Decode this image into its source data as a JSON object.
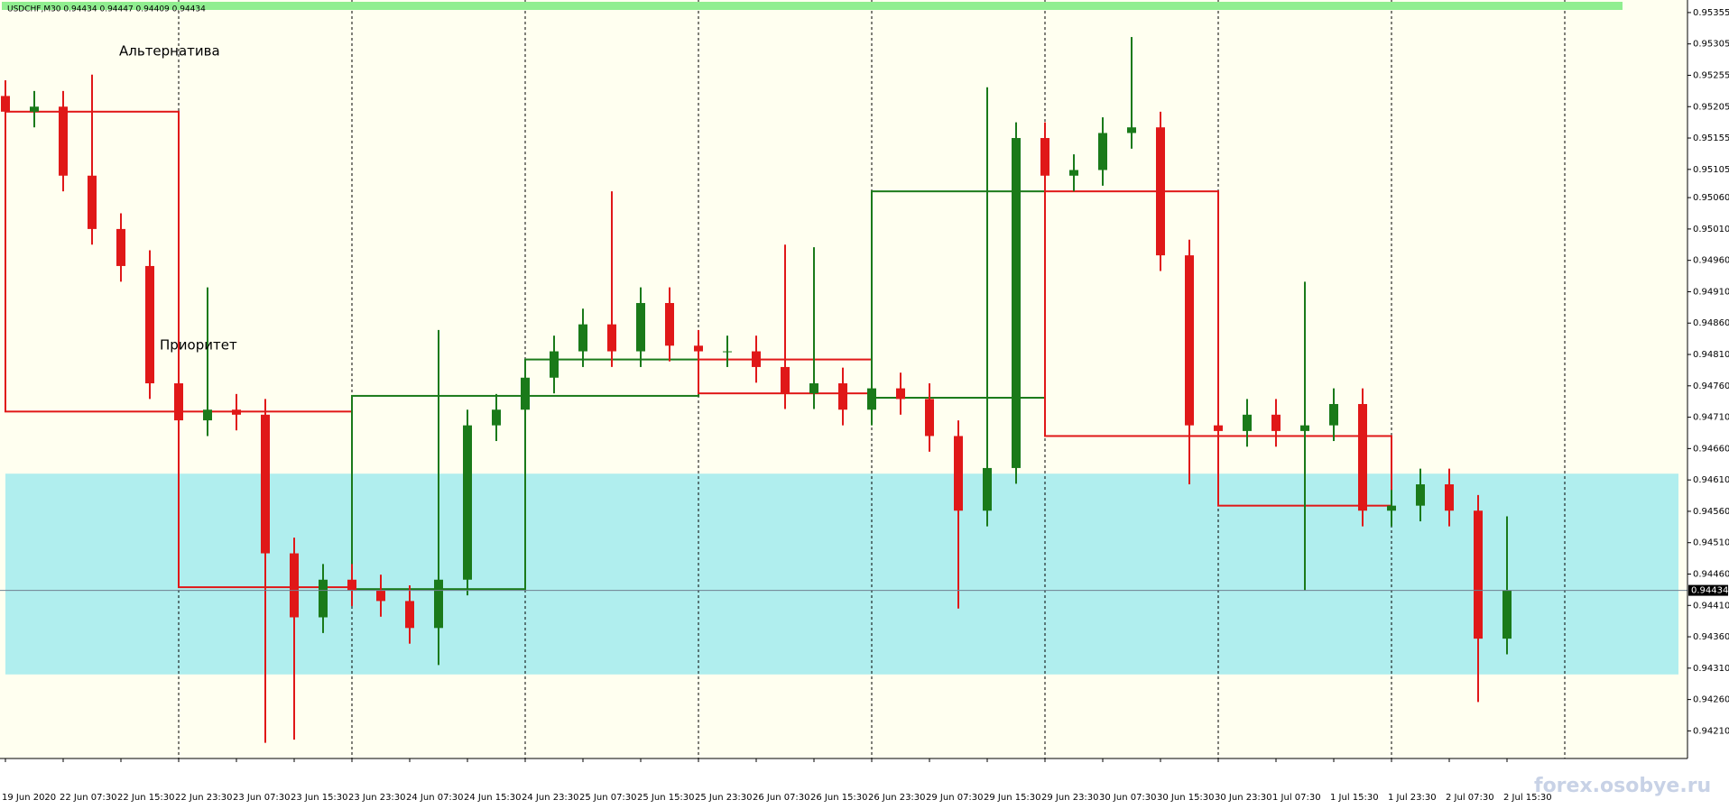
{
  "chart_data": {
    "type": "candlestick",
    "header": "USDCHF,M30  0.94434 0.94447 0.94409 0.94434",
    "annotations": [
      "Альтернатива",
      "Приоритет"
    ],
    "watermark": "forex.osobye.ru",
    "categories": [
      "19 Jun 2020",
      null,
      "22 Jun 07:30",
      null,
      "22 Jun 15:30",
      null,
      "22 Jun 23:30",
      null,
      "23 Jun 07:30",
      null,
      "23 Jun 15:30",
      null,
      "23 Jun 23:30",
      null,
      "24 Jun 07:30",
      null,
      "24 Jun 15:30",
      null,
      "24 Jun 23:30",
      null,
      "25 Jun 07:30",
      null,
      "25 Jun 15:30",
      null,
      "25 Jun 23:30",
      null,
      "26 Jun 07:30",
      null,
      "26 Jun 15:30",
      null,
      "26 Jun 23:30",
      null,
      "29 Jun 07:30",
      null,
      "29 Jun 15:30",
      null,
      "29 Jun 23:30",
      null,
      "30 Jun 07:30",
      null,
      "30 Jun 15:30",
      null,
      "30 Jun 23:30",
      null,
      "1 Jul 07:30",
      null,
      "1 Jul 15:30",
      null,
      "1 Jul 23:30",
      null,
      "2 Jul 07:30",
      null,
      "2 Jul 15:30"
    ],
    "open": [
      0.95222,
      0.95197,
      0.95205,
      0.95095,
      0.9501,
      0.94951,
      0.94764,
      0.94705,
      0.94722,
      0.94714,
      0.94493,
      0.94391,
      0.94451,
      0.94434,
      0.94417,
      0.94374,
      0.94451,
      0.94697,
      0.94722,
      0.94773,
      0.94815,
      0.94858,
      0.94815,
      0.94892,
      0.94824,
      0.94815,
      0.94815,
      0.9479,
      0.94748,
      0.94764,
      0.94722,
      0.94756,
      0.94739,
      0.9468,
      0.94561,
      0.94629,
      0.95155,
      0.95095,
      0.95104,
      0.95163,
      0.95172,
      0.94968,
      0.94697,
      0.94688,
      0.94714,
      0.94688,
      0.94697,
      0.94731,
      0.94561,
      0.94569,
      0.94603,
      0.94561,
      0.94357
    ],
    "high": [
      0.95247,
      0.9523,
      0.9523,
      0.95256,
      0.95035,
      0.94976,
      0.94789,
      0.94917,
      0.94747,
      0.94739,
      0.94518,
      0.94476,
      0.94476,
      0.94459,
      0.94442,
      0.94849,
      0.94722,
      0.94747,
      0.94798,
      0.9484,
      0.94883,
      0.9507,
      0.94917,
      0.94917,
      0.94849,
      0.9484,
      0.9484,
      0.94985,
      0.94981,
      0.94789,
      0.94781,
      0.94781,
      0.94764,
      0.94705,
      0.95236,
      0.9518,
      0.9518,
      0.95129,
      0.95188,
      0.95316,
      0.95197,
      0.94993,
      0.94722,
      0.94739,
      0.94739,
      0.94926,
      0.94756,
      0.94756,
      0.94594,
      0.94628,
      0.94628,
      0.94586,
      0.94552
    ],
    "low": [
      0.95172,
      0.95172,
      0.9507,
      0.94985,
      0.94926,
      0.94739,
      0.9468,
      0.9468,
      0.94689,
      0.94191,
      0.94196,
      0.94366,
      0.94409,
      0.94392,
      0.94349,
      0.94315,
      0.94426,
      0.94672,
      0.94697,
      0.94748,
      0.9479,
      0.9479,
      0.9479,
      0.94799,
      0.9479,
      0.9479,
      0.94765,
      0.94723,
      0.94723,
      0.94697,
      0.94697,
      0.94714,
      0.94655,
      0.94405,
      0.94536,
      0.94604,
      0.9507,
      0.9507,
      0.95079,
      0.95138,
      0.94943,
      0.94603,
      0.94663,
      0.94663,
      0.94663,
      0.94434,
      0.94672,
      0.94536,
      0.94536,
      0.94544,
      0.94536,
      0.94256,
      0.94332
    ],
    "close": [
      0.95197,
      0.95205,
      0.95095,
      0.9501,
      0.94951,
      0.94764,
      0.94705,
      0.94722,
      0.94714,
      0.94493,
      0.94391,
      0.94451,
      0.94434,
      0.94417,
      0.94374,
      0.94451,
      0.94697,
      0.94722,
      0.94773,
      0.94815,
      0.94858,
      0.94815,
      0.94892,
      0.94824,
      0.94815,
      0.94815,
      0.9479,
      0.94748,
      0.94764,
      0.94722,
      0.94756,
      0.94739,
      0.9468,
      0.94561,
      0.94629,
      0.95155,
      0.95095,
      0.95104,
      0.95163,
      0.95172,
      0.94968,
      0.94697,
      0.94688,
      0.94714,
      0.94688,
      0.94697,
      0.94731,
      0.94561,
      0.94569,
      0.94603,
      0.94561,
      0.94357,
      0.94434
    ],
    "up_color": "#1a7a1a",
    "down_color": "#e01818",
    "boxes": [
      {
        "high": 0.95197,
        "low": 0.94719,
        "color": "#e01818"
      },
      {
        "high": 0.94719,
        "low": 0.94439,
        "color": "#e01818"
      },
      {
        "high": 0.94744,
        "low": 0.94436,
        "color": "#1a7a1a"
      },
      {
        "high": 0.94802,
        "low": 0.94744,
        "color": "#1a7a1a"
      },
      {
        "high": 0.94802,
        "low": 0.94748,
        "color": "#e01818"
      },
      {
        "high": 0.9507,
        "low": 0.94741,
        "color": "#1a7a1a"
      },
      {
        "high": 0.9507,
        "low": 0.9468,
        "color": "#e01818"
      },
      {
        "high": 0.9468,
        "low": 0.94569,
        "color": "#e01818"
      }
    ],
    "zone": {
      "high": 0.9462,
      "low": 0.943,
      "color": "#b0eeee"
    },
    "bid": 0.94434,
    "ylim": [
      0.94166,
      0.95375
    ],
    "yticks": [
      0.95355,
      0.95305,
      0.95255,
      0.95205,
      0.95155,
      0.95105,
      {
        "value": 0.9506,
        "label": "0.95060"
      },
      {
        "value": 0.9501,
        "label": "0.95010"
      },
      {
        "value": 0.9496,
        "label": "0.94960"
      },
      {
        "value": 0.9491,
        "label": "0.94910"
      },
      {
        "value": 0.9486,
        "label": "0.94860"
      },
      {
        "value": 0.9481,
        "label": "0.94810"
      },
      {
        "value": 0.9476,
        "label": "0.94760"
      },
      {
        "value": 0.9471,
        "label": "0.94710"
      },
      {
        "value": 0.9466,
        "label": "0.94660"
      },
      {
        "value": 0.9461,
        "label": "0.94610"
      },
      {
        "value": 0.9456,
        "label": "0.94560"
      },
      {
        "value": 0.9451,
        "label": "0.94510"
      },
      {
        "value": 0.9446,
        "label": "0.94460"
      },
      {
        "value": 0.9441,
        "label": "0.94410"
      },
      {
        "value": 0.9436,
        "label": "0.94360"
      },
      {
        "value": 0.9431,
        "label": "0.94310"
      },
      {
        "value": 0.9426,
        "label": "0.94260"
      },
      {
        "value": 0.9421,
        "label": "0.94210"
      }
    ]
  }
}
